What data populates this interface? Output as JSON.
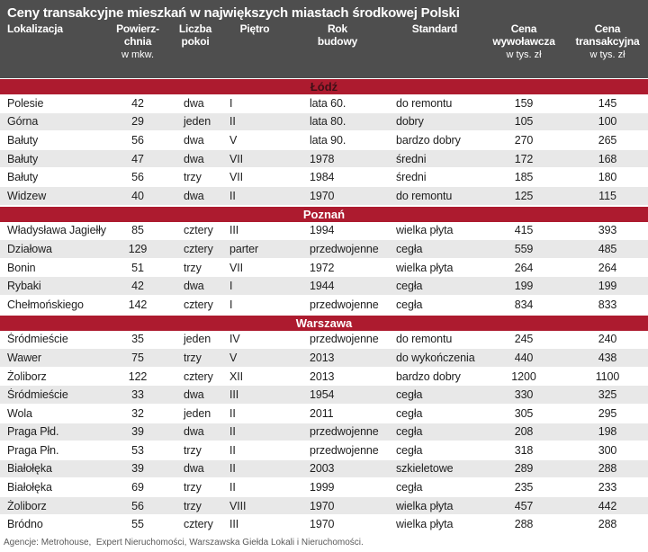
{
  "chart_data": {
    "type": "table",
    "title": "Ceny transakcyjne mieszkań w największych miastach środkowej Polski",
    "columns": [
      {
        "key": "lokalizacja",
        "lines": [
          "Lokalizacja"
        ],
        "unit": ""
      },
      {
        "key": "powierzchnia",
        "lines": [
          "Powierz-",
          "chnia"
        ],
        "unit": "w mkw."
      },
      {
        "key": "liczba-pokoi",
        "lines": [
          "Liczba",
          "pokoi"
        ],
        "unit": ""
      },
      {
        "key": "pietro",
        "lines": [
          "Piętro"
        ],
        "unit": ""
      },
      {
        "key": "rok-budowy",
        "lines": [
          "Rok",
          "budowy"
        ],
        "unit": ""
      },
      {
        "key": "standard",
        "lines": [
          "Standard"
        ],
        "unit": ""
      },
      {
        "key": "cena-wywolawcza",
        "lines": [
          "Cena",
          "wywoławcza"
        ],
        "unit": "w tys. zł"
      },
      {
        "key": "cena-transakcyjna",
        "lines": [
          "Cena",
          "transakcyjna"
        ],
        "unit": "w tys. zł"
      }
    ],
    "sections": [
      {
        "name": "Łódź",
        "label_color": "#3f1017",
        "rows": [
          [
            "Polesie",
            "42",
            "dwa",
            "I",
            "lata 60.",
            "do remontu",
            "159",
            "145"
          ],
          [
            "Górna",
            "29",
            "jeden",
            "II",
            "lata 80.",
            "dobry",
            "105",
            "100"
          ],
          [
            "Bałuty",
            "56",
            "dwa",
            "V",
            "lata 90.",
            "bardzo dobry",
            "270",
            "265"
          ],
          [
            "Bałuty",
            "47",
            "dwa",
            "VII",
            "1978",
            "średni",
            "172",
            "168"
          ],
          [
            "Bałuty",
            "56",
            "trzy",
            "VII",
            "1984",
            "średni",
            "185",
            "180"
          ],
          [
            "Widzew",
            "40",
            "dwa",
            "II",
            "1970",
            "do remontu",
            "125",
            "115"
          ]
        ]
      },
      {
        "name": "Poznań",
        "label_color": "#ffffff",
        "rows": [
          [
            "Władysława Jagiełły",
            "85",
            "cztery",
            "III",
            "1994",
            "wielka płyta",
            "415",
            "393"
          ],
          [
            "Działowa",
            "129",
            "cztery",
            "parter",
            "przedwojenne",
            "cegła",
            "559",
            "485"
          ],
          [
            "Bonin",
            "51",
            "trzy",
            "VII",
            "1972",
            "wielka płyta",
            "264",
            "264"
          ],
          [
            "Rybaki",
            "42",
            "dwa",
            "I",
            "1944",
            "cegła",
            "199",
            "199"
          ],
          [
            "Chełmońskiego",
            "142",
            "cztery",
            "I",
            "przedwojenne",
            "cegła",
            "834",
            "833"
          ]
        ]
      },
      {
        "name": "Warszawa",
        "label_color": "#ffffff",
        "rows": [
          [
            "Śródmieście",
            "35",
            "jeden",
            "IV",
            "przedwojenne",
            "do remontu",
            "245",
            "240"
          ],
          [
            "Wawer",
            "75",
            "trzy",
            "V",
            "2013",
            "do wykończenia",
            "440",
            "438"
          ],
          [
            "Żoliborz",
            "122",
            "cztery",
            "XII",
            "2013",
            "bardzo dobry",
            "1200",
            "1100"
          ],
          [
            "Śródmieście",
            "33",
            "dwa",
            "III",
            "1954",
            "cegła",
            "330",
            "325"
          ],
          [
            "Wola",
            "32",
            "jeden",
            "II",
            "2011",
            "cegła",
            "305",
            "295"
          ],
          [
            "Praga Płd.",
            "39",
            "dwa",
            "II",
            "przedwojenne",
            "cegła",
            "208",
            "198"
          ],
          [
            "Praga Płn.",
            "53",
            "trzy",
            "II",
            "przedwojenne",
            "cegła",
            "318",
            "300"
          ],
          [
            "Białołęka",
            "39",
            "dwa",
            "II",
            "2003",
            "szkieletowe",
            "289",
            "288"
          ],
          [
            "Białołęka",
            "69",
            "trzy",
            "II",
            "1999",
            "cegła",
            "235",
            "233"
          ],
          [
            "Żoliborz",
            "56",
            "trzy",
            "VIII",
            "1970",
            "wielka płyta",
            "457",
            "442"
          ],
          [
            "Bródno",
            "55",
            "cztery",
            "III",
            "1970",
            "wielka płyta",
            "288",
            "288"
          ]
        ]
      }
    ],
    "source": "Agencje: Metrohouse,  Expert Nieruchomości, Warszawska Giełda Lokali i Nieruchomości.",
    "colors": {
      "header_bg": "#4e4e4e",
      "header_text": "#ffffff",
      "section_bg": "#ad1b2f",
      "row_bg": "#ffffff",
      "row_alt_bg": "#e8e8e8",
      "text": "#1e1e1e",
      "source_text": "#5a5a5a"
    }
  }
}
